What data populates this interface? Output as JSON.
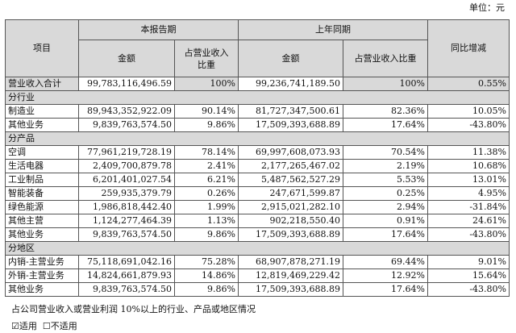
{
  "unit": "单位：元",
  "header": {
    "item": "项目",
    "current_period": "本报告期",
    "prior_period": "上年同期",
    "yoy": "同比增减",
    "amount": "金额",
    "share_wrapped": "占营业收入比重",
    "share": "占营业收入比重"
  },
  "total": {
    "label": "营业收入合计",
    "cur_amount": "99,783,116,496.59",
    "cur_share": "100%",
    "prev_amount": "99,236,741,189.50",
    "prev_share": "100%",
    "yoy": "0.55%"
  },
  "sections": [
    {
      "title": "分行业",
      "rows": [
        {
          "label": "制造业",
          "cur_amount": "89,943,352,922.09",
          "cur_share": "90.14%",
          "prev_amount": "81,727,347,500.61",
          "prev_share": "82.36%",
          "yoy": "10.05%"
        },
        {
          "label": "其他业务",
          "cur_amount": "9,839,763,574.50",
          "cur_share": "9.86%",
          "prev_amount": "17,509,393,688.89",
          "prev_share": "17.64%",
          "yoy": "-43.80%"
        }
      ]
    },
    {
      "title": "分产品",
      "rows": [
        {
          "label": "空调",
          "cur_amount": "77,961,219,728.19",
          "cur_share": "78.14%",
          "prev_amount": "69,997,608,073.93",
          "prev_share": "70.54%",
          "yoy": "11.38%"
        },
        {
          "label": "生活电器",
          "cur_amount": "2,409,700,879.78",
          "cur_share": "2.41%",
          "prev_amount": "2,177,265,467.02",
          "prev_share": "2.19%",
          "yoy": "10.68%"
        },
        {
          "label": "工业制品",
          "cur_amount": "6,201,401,027.54",
          "cur_share": "6.21%",
          "prev_amount": "5,487,562,527.29",
          "prev_share": "5.53%",
          "yoy": "13.01%"
        },
        {
          "label": "智能装备",
          "cur_amount": "259,935,379.79",
          "cur_share": "0.26%",
          "prev_amount": "247,671,599.87",
          "prev_share": "0.25%",
          "yoy": "4.95%"
        },
        {
          "label": "绿色能源",
          "cur_amount": "1,986,818,442.40",
          "cur_share": "1.99%",
          "prev_amount": "2,915,021,282.10",
          "prev_share": "2.94%",
          "yoy": "-31.84%"
        },
        {
          "label": "其他主营",
          "cur_amount": "1,124,277,464.39",
          "cur_share": "1.13%",
          "prev_amount": "902,218,550.40",
          "prev_share": "0.91%",
          "yoy": "24.61%"
        },
        {
          "label": "其他业务",
          "cur_amount": "9,839,763,574.50",
          "cur_share": "9.86%",
          "prev_amount": "17,509,393,688.89",
          "prev_share": "17.64%",
          "yoy": "-43.80%"
        }
      ]
    },
    {
      "title": "分地区",
      "rows": [
        {
          "label": "内销-主营业务",
          "cur_amount": "75,118,691,042.16",
          "cur_share": "75.28%",
          "prev_amount": "68,907,878,271.19",
          "prev_share": "69.44%",
          "yoy": "9.01%"
        },
        {
          "label": "外销-主营业务",
          "cur_amount": "14,824,661,879.93",
          "cur_share": "14.86%",
          "prev_amount": "12,819,469,229.42",
          "prev_share": "12.92%",
          "yoy": "15.64%"
        },
        {
          "label": "其他业务",
          "cur_amount": "9,839,763,574.50",
          "cur_share": "9.86%",
          "prev_amount": "17,509,393,688.89",
          "prev_share": "17.64%",
          "yoy": "-43.80%"
        }
      ]
    }
  ],
  "note": "占公司营业收入或营业利润 10%以上的行业、产品或地区情况",
  "options": {
    "applicable": {
      "label": "适用",
      "checked": true,
      "box": "☑"
    },
    "not_applicable": {
      "label": "不适用",
      "checked": false,
      "box": "☐"
    }
  }
}
